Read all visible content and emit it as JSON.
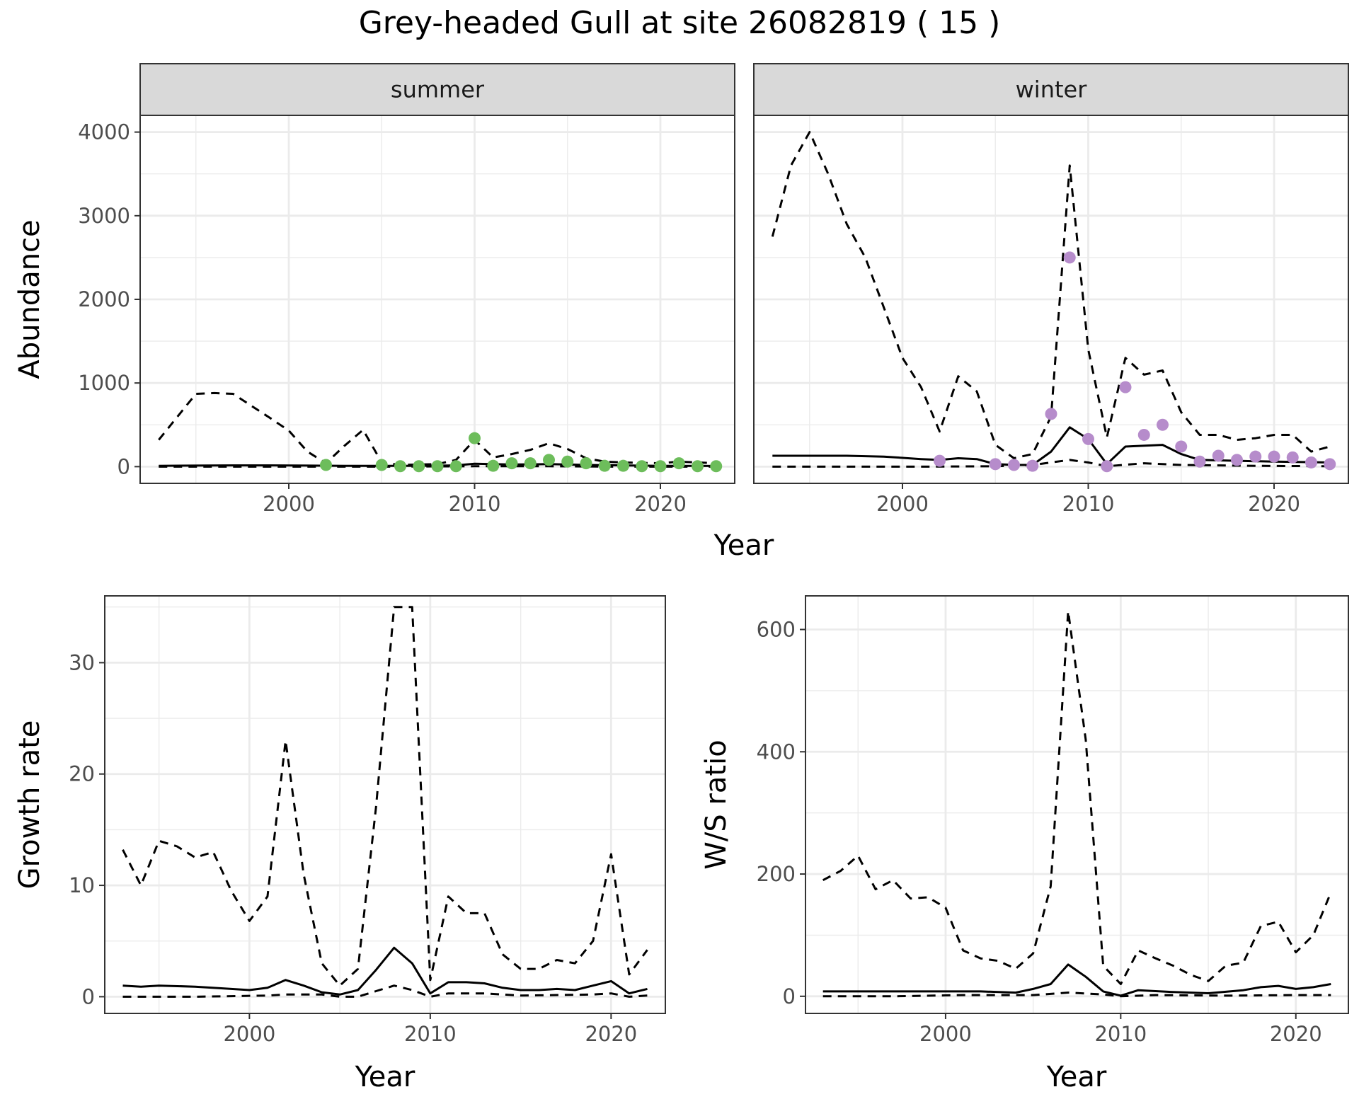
{
  "title": "Grey-headed Gull at site 26082819 ( 15 )",
  "colors": {
    "summer_points": "#6DBD5B",
    "winter_points": "#B68CCB",
    "line": "#000000",
    "strip": "#D9D9D9",
    "grid": "#EBEBEB"
  },
  "chart_data": [
    {
      "type": "line",
      "facet": "summer",
      "xlabel": "Year",
      "ylabel": "Abundance",
      "xlim": [
        1992,
        2024
      ],
      "ylim": [
        -200,
        4200
      ],
      "xticks": [
        2000,
        2010,
        2020
      ],
      "yticks": [
        0,
        1000,
        2000,
        3000,
        4000
      ],
      "grid": true,
      "series": [
        {
          "style": "solid",
          "x": [
            1993,
            1995,
            1997,
            1999,
            2001,
            2003,
            2005,
            2007,
            2009,
            2010,
            2012,
            2014,
            2016,
            2018,
            2020,
            2023
          ],
          "values": [
            10,
            12,
            15,
            15,
            12,
            10,
            10,
            10,
            15,
            35,
            25,
            30,
            20,
            15,
            10,
            8
          ]
        },
        {
          "style": "dashed",
          "x": [
            1993,
            1995,
            1996,
            1997,
            1999,
            2000,
            2001,
            2002,
            2003,
            2004,
            2005,
            2006,
            2008,
            2009,
            2010,
            2011,
            2012,
            2013,
            2014,
            2015,
            2016,
            2017,
            2018,
            2020,
            2021,
            2023
          ],
          "values": [
            320,
            870,
            880,
            870,
            580,
            430,
            180,
            40,
            250,
            440,
            50,
            20,
            30,
            80,
            320,
            110,
            150,
            200,
            280,
            210,
            100,
            60,
            50,
            40,
            60,
            40
          ]
        },
        {
          "style": "dashed",
          "x": [
            1993,
            1997,
            2001,
            2005,
            2010,
            2014,
            2018,
            2023
          ],
          "values": [
            0,
            0,
            0,
            0,
            5,
            5,
            0,
            0
          ]
        }
      ],
      "points": {
        "x": [
          2002,
          2005,
          2006,
          2007,
          2008,
          2009,
          2010,
          2011,
          2012,
          2013,
          2014,
          2015,
          2016,
          2017,
          2018,
          2019,
          2020,
          2021,
          2022,
          2023
        ],
        "values": [
          20,
          20,
          5,
          5,
          5,
          5,
          340,
          10,
          40,
          40,
          80,
          60,
          40,
          10,
          10,
          5,
          5,
          40,
          5,
          5
        ]
      }
    },
    {
      "type": "line",
      "facet": "winter",
      "xlabel": "Year",
      "ylabel": "Abundance",
      "xlim": [
        1992,
        2024
      ],
      "ylim": [
        -200,
        4200
      ],
      "xticks": [
        2000,
        2010,
        2020
      ],
      "yticks": [
        0,
        1000,
        2000,
        3000,
        4000
      ],
      "grid": true,
      "series": [
        {
          "style": "solid",
          "x": [
            1993,
            1995,
            1997,
            1999,
            2001,
            2002,
            2003,
            2004,
            2005,
            2006,
            2007,
            2008,
            2009,
            2010,
            2011,
            2012,
            2014,
            2015,
            2016,
            2018,
            2020,
            2023
          ],
          "values": [
            130,
            130,
            130,
            120,
            90,
            80,
            100,
            90,
            30,
            20,
            20,
            180,
            470,
            330,
            30,
            240,
            260,
            150,
            80,
            70,
            60,
            50
          ]
        },
        {
          "style": "dashed",
          "x": [
            1993,
            1994,
            1995,
            1996,
            1997,
            1998,
            1999,
            2000,
            2001,
            2002,
            2003,
            2004,
            2005,
            2006,
            2007,
            2008,
            2009,
            2010,
            2011,
            2012,
            2013,
            2014,
            2015,
            2016,
            2017,
            2018,
            2019,
            2020,
            2021,
            2022,
            2023
          ],
          "values": [
            2750,
            3600,
            4000,
            3500,
            2900,
            2500,
            1900,
            1300,
            950,
            420,
            1080,
            900,
            260,
            100,
            150,
            600,
            3600,
            1400,
            350,
            1300,
            1100,
            1150,
            650,
            380,
            380,
            320,
            340,
            380,
            380,
            180,
            240
          ]
        },
        {
          "style": "dashed",
          "x": [
            1993,
            1997,
            2001,
            2005,
            2007,
            2009,
            2010,
            2011,
            2013,
            2015,
            2019,
            2023
          ],
          "values": [
            0,
            0,
            0,
            5,
            20,
            80,
            50,
            5,
            40,
            20,
            10,
            5
          ]
        }
      ],
      "points": {
        "x": [
          2002,
          2005,
          2006,
          2007,
          2008,
          2009,
          2010,
          2011,
          2012,
          2013,
          2014,
          2015,
          2016,
          2017,
          2018,
          2019,
          2020,
          2021,
          2022,
          2023
        ],
        "values": [
          70,
          30,
          20,
          10,
          630,
          2500,
          330,
          5,
          950,
          380,
          500,
          240,
          60,
          130,
          80,
          120,
          120,
          110,
          50,
          30
        ]
      }
    },
    {
      "type": "line",
      "xlabel": "Year",
      "ylabel": "Growth rate",
      "xlim": [
        1992,
        2023
      ],
      "ylim": [
        -1.5,
        36
      ],
      "xticks": [
        2000,
        2010,
        2020
      ],
      "yticks": [
        0,
        10,
        20,
        30
      ],
      "grid": true,
      "series": [
        {
          "style": "solid",
          "x": [
            1993,
            1994,
            1995,
            1997,
            1999,
            2000,
            2001,
            2002,
            2003,
            2004,
            2005,
            2006,
            2007,
            2008,
            2009,
            2010,
            2011,
            2012,
            2013,
            2014,
            2015,
            2016,
            2017,
            2018,
            2019,
            2020,
            2021,
            2022
          ],
          "values": [
            1.0,
            0.9,
            1.0,
            0.9,
            0.7,
            0.6,
            0.8,
            1.5,
            1.0,
            0.4,
            0.2,
            0.6,
            2.4,
            4.4,
            3.0,
            0.3,
            1.3,
            1.3,
            1.2,
            0.8,
            0.6,
            0.6,
            0.7,
            0.6,
            1.0,
            1.4,
            0.3,
            0.7
          ]
        },
        {
          "style": "dashed",
          "x": [
            1993,
            1994,
            1995,
            1996,
            1997,
            1998,
            1999,
            2000,
            2001,
            2002,
            2003,
            2004,
            2005,
            2006,
            2007,
            2008,
            2009,
            2010,
            2011,
            2012,
            2013,
            2014,
            2015,
            2016,
            2017,
            2018,
            2019,
            2020,
            2021,
            2022
          ],
          "values": [
            13.2,
            10.0,
            14.0,
            13.5,
            12.5,
            13.0,
            9.5,
            6.8,
            9.0,
            23.0,
            11.0,
            3.0,
            1.0,
            2.5,
            17.0,
            35.0,
            35.0,
            1.5,
            9.0,
            7.5,
            7.5,
            3.8,
            2.5,
            2.5,
            3.3,
            3.0,
            5.0,
            12.8,
            2.0,
            4.2
          ]
        },
        {
          "style": "dashed",
          "x": [
            1993,
            1997,
            2001,
            2002,
            2004,
            2005,
            2006,
            2007,
            2008,
            2009,
            2010,
            2011,
            2013,
            2015,
            2019,
            2020,
            2021,
            2022
          ],
          "values": [
            0.0,
            0.0,
            0.1,
            0.2,
            0.2,
            0.0,
            0.0,
            0.5,
            1.0,
            0.6,
            0.0,
            0.3,
            0.3,
            0.1,
            0.2,
            0.3,
            0.0,
            0.1
          ]
        }
      ]
    },
    {
      "type": "line",
      "xlabel": "Year",
      "ylabel": "W/S ratio",
      "xlim": [
        1992,
        2023
      ],
      "ylim": [
        -28,
        655
      ],
      "xticks": [
        2000,
        2010,
        2020
      ],
      "yticks": [
        0,
        200,
        400,
        600
      ],
      "grid": true,
      "series": [
        {
          "style": "solid",
          "x": [
            1993,
            1996,
            1999,
            2002,
            2004,
            2005,
            2006,
            2007,
            2008,
            2009,
            2010,
            2011,
            2013,
            2015,
            2017,
            2018,
            2019,
            2020,
            2021,
            2022
          ],
          "values": [
            8,
            8,
            8,
            8,
            6,
            12,
            20,
            52,
            32,
            8,
            1,
            10,
            7,
            5,
            10,
            15,
            17,
            12,
            15,
            20
          ]
        },
        {
          "style": "dashed",
          "x": [
            1993,
            1994,
            1995,
            1996,
            1997,
            1998,
            1999,
            2000,
            2001,
            2002,
            2003,
            2004,
            2005,
            2006,
            2007,
            2008,
            2009,
            2010,
            2011,
            2012,
            2013,
            2014,
            2015,
            2016,
            2017,
            2018,
            2019,
            2020,
            2021,
            2022
          ],
          "values": [
            190,
            205,
            230,
            175,
            190,
            160,
            162,
            145,
            75,
            62,
            58,
            45,
            70,
            180,
            630,
            420,
            50,
            20,
            75,
            62,
            50,
            35,
            25,
            50,
            55,
            115,
            122,
            72,
            100,
            170
          ]
        },
        {
          "style": "dashed",
          "x": [
            1993,
            1997,
            2001,
            2005,
            2007,
            2009,
            2010,
            2012,
            2016,
            2020,
            2022
          ],
          "values": [
            0,
            0,
            2,
            2,
            6,
            3,
            0,
            2,
            1,
            2,
            2
          ]
        }
      ]
    }
  ]
}
